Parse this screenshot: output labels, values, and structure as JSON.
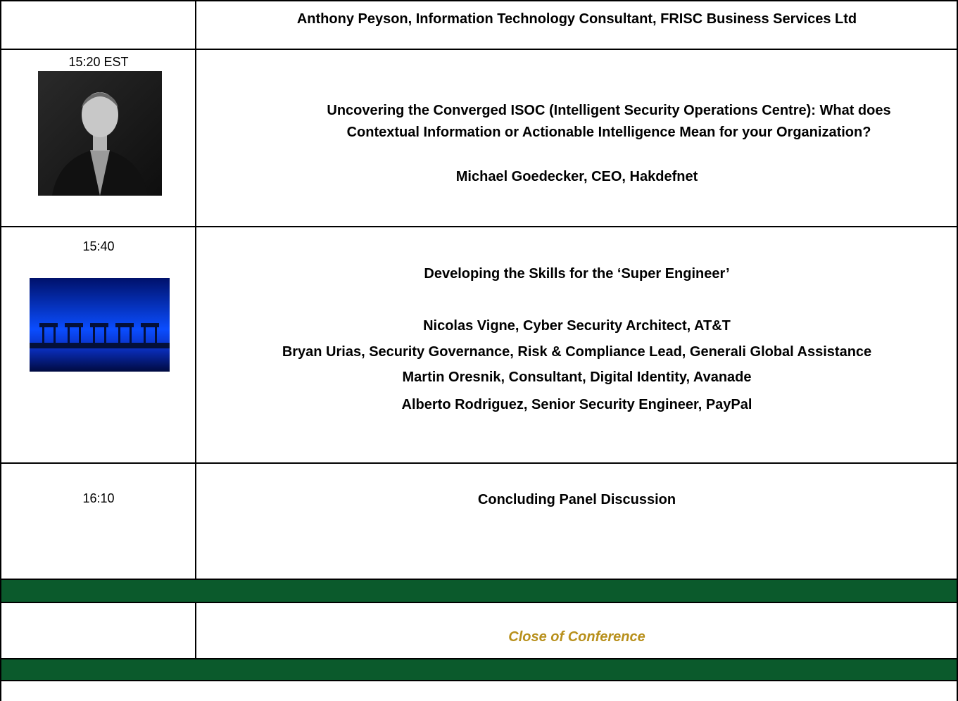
{
  "table": {
    "rows": [
      {
        "speakers": [
          "Anthony Peyson, Information Technology Consultant, FRISC Business Services Ltd"
        ]
      },
      {
        "time": "15:20 EST",
        "title_lines": [
          "Uncovering the Converged ISOC (Intelligent Security Operations Centre): What does",
          "Contextual Information or Actionable Intelligence Mean for your Organization?"
        ],
        "speakers": [
          "Michael Goedecker, CEO, Hakdefnet"
        ]
      },
      {
        "time": "15:40",
        "title": "Developing the Skills for the ‘Super Engineer’",
        "speakers": [
          "Nicolas Vigne, Cyber Security Architect, AT&T",
          "Bryan Urias, Security Governance, Risk & Compliance Lead, Generali Global Assistance",
          "Martin Oresnik, Consultant, Digital Identity, Avanade",
          "Alberto Rodriguez, Senior Security Engineer, PayPal"
        ]
      },
      {
        "time": "16:10",
        "title": "Concluding Panel Discussion"
      },
      {
        "title": "Close of Conference"
      }
    ]
  }
}
